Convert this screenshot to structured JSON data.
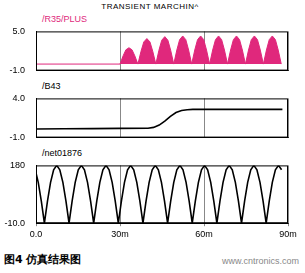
{
  "title": "TRANSIENT MARCHIN^",
  "caption": "图4 仿真结果图",
  "watermark": "www.cntronics.com",
  "chart_data": [
    {
      "type": "area",
      "x": [
        0,
        30,
        31.1,
        32.1,
        33.2,
        34.3,
        35.3,
        36.4,
        37.5,
        38.5,
        39.6,
        40.7,
        41.7,
        42.8,
        43.9,
        44.9,
        46,
        47.1,
        48.1,
        49.2,
        50.3,
        51.3,
        52.4,
        53.5,
        54.5,
        55.6,
        56.7,
        57.7,
        58.8,
        59.9,
        60.9,
        62,
        63.1,
        64.1,
        65.2,
        66.3,
        67.3,
        68.4,
        69.5,
        70.5,
        71.6,
        72.7,
        73.7,
        74.8,
        75.9,
        76.9,
        78,
        79.1,
        80.1,
        81.2,
        82.3,
        83.3,
        84.4,
        85.5,
        86.5,
        87.6
      ],
      "series": [
        {
          "name": "/R35/PLUS",
          "color": "#e0287c",
          "values": [
            0,
            0,
            1.25,
            2.18,
            2.5,
            2.18,
            1.25,
            0,
            1.95,
            3.39,
            3.9,
            3.39,
            1.95,
            0,
            2.1,
            3.65,
            4.2,
            3.65,
            2.1,
            0,
            2.15,
            3.74,
            4.3,
            3.74,
            2.15,
            0,
            2.15,
            3.74,
            4.3,
            3.74,
            2.15,
            0,
            2.15,
            3.74,
            4.3,
            3.74,
            2.15,
            0,
            2.15,
            3.74,
            4.3,
            3.74,
            2.15,
            0,
            2.15,
            3.74,
            4.3,
            3.74,
            2.15,
            0,
            2.15,
            3.74,
            4.3,
            3.74,
            2.15,
            0
          ]
        }
      ],
      "xlim": [
        0,
        90
      ],
      "xticks": [
        {
          "value": 0,
          "label": "0.0"
        },
        {
          "value": 30,
          "label": "30m"
        },
        {
          "value": 60,
          "label": "60m"
        },
        {
          "value": 90,
          "label": "90m"
        }
      ],
      "ylim": [
        -1,
        5
      ],
      "yticks": [
        {
          "value": -1,
          "label": "-1.0"
        },
        {
          "value": 5,
          "label": "5.0"
        }
      ],
      "grid": true,
      "tick_labels": "y"
    },
    {
      "type": "line",
      "x": [
        0,
        10,
        20,
        30,
        40,
        42,
        44,
        46,
        48,
        50,
        52,
        54,
        56,
        60,
        70,
        80,
        88
      ],
      "series": [
        {
          "name": "/B43",
          "color": "#000000",
          "values": [
            0.1,
            0.12,
            0.15,
            0.18,
            0.2,
            0.3,
            0.6,
            1.1,
            1.7,
            2.2,
            2.45,
            2.55,
            2.6,
            2.6,
            2.6,
            2.6,
            2.6
          ]
        }
      ],
      "xlim": [
        0,
        90
      ],
      "xticks": [
        {
          "value": 0,
          "label": "0.0"
        },
        {
          "value": 30,
          "label": "30m"
        },
        {
          "value": 60,
          "label": "60m"
        },
        {
          "value": 90,
          "label": "90m"
        }
      ],
      "ylim": [
        -1,
        4
      ],
      "yticks": [
        {
          "value": -1,
          "label": "-1.0"
        },
        {
          "value": 4,
          "label": "4.0"
        }
      ],
      "grid": true,
      "tick_labels": "y"
    },
    {
      "type": "line",
      "x": [
        0,
        0.8,
        1.9,
        3,
        4.1,
        5.2,
        6.3,
        7.4,
        8.5,
        9.6,
        10.7,
        11.8,
        12.9,
        14,
        15.1,
        16.2,
        17.3,
        18.4,
        19.5,
        20.6,
        21.7,
        22.8,
        23.9,
        25,
        26.1,
        27.2,
        28.3,
        29.4,
        30.5,
        31.6,
        32.7,
        33.8,
        34.9,
        36,
        37.1,
        38.2,
        39.3,
        40.4,
        41.5,
        42.6,
        43.7,
        44.8,
        45.9,
        47,
        48.1,
        49.2,
        50.3,
        51.4,
        52.5,
        53.6,
        54.7,
        55.8,
        56.9,
        58,
        59.1,
        60.2,
        61.3,
        62.4,
        63.5,
        64.6,
        65.7,
        66.8,
        67.9,
        69,
        70.1,
        71.2,
        72.3,
        73.4,
        74.5,
        75.6,
        76.7,
        77.8,
        78.9,
        80,
        81.1,
        82.2,
        83.3,
        84.4,
        85.5,
        86.6,
        87.7
      ],
      "series": [
        {
          "name": "/net01876",
          "color": "#000000",
          "values": [
            155,
            124.3,
            62.7,
            -10,
            62.7,
            124.3,
            165.5,
            180,
            165.5,
            124.3,
            62.7,
            -10,
            62.7,
            124.3,
            165.5,
            180,
            165.5,
            124.3,
            62.7,
            -10,
            62.7,
            124.3,
            165.5,
            180,
            165.5,
            124.3,
            62.7,
            -10,
            62.7,
            124.3,
            165.5,
            180,
            165.5,
            124.3,
            62.7,
            -10,
            62.7,
            124.3,
            165.5,
            180,
            165.5,
            124.3,
            62.7,
            -10,
            62.7,
            124.3,
            165.5,
            180,
            165.5,
            124.3,
            62.7,
            -10,
            62.7,
            124.3,
            165.5,
            180,
            165.5,
            124.3,
            62.7,
            -10,
            62.7,
            124.3,
            165.5,
            180,
            165.5,
            124.3,
            62.7,
            -10,
            62.7,
            124.3,
            165.5,
            180,
            165.5,
            124.3,
            62.7,
            -10,
            62.7,
            124.3,
            165.5,
            180,
            165.5
          ]
        }
      ],
      "xlim": [
        0,
        90
      ],
      "xticks": [
        {
          "value": 0,
          "label": "0.0"
        },
        {
          "value": 30,
          "label": "30m"
        },
        {
          "value": 60,
          "label": "60m"
        },
        {
          "value": 90,
          "label": "90m"
        }
      ],
      "ylim": [
        -10,
        180
      ],
      "yticks": [
        180,
        {
          "value": -10,
          "label": "-10.0"
        }
      ],
      "grid": true
    }
  ]
}
